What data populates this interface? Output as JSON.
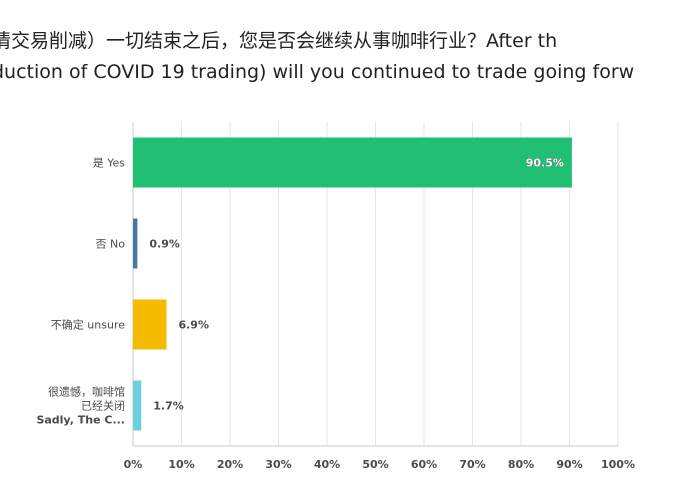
{
  "question": {
    "line1": "情交易削减）一切结束之后，您是否会继续从事咖啡行业？After th",
    "line2": "duction of COVID 19 trading) will you continued to trade going forw"
  },
  "chart_data": {
    "type": "bar",
    "orientation": "horizontal",
    "categories": [
      [
        "是 Yes"
      ],
      [
        "否 No"
      ],
      [
        "不确定 unsure"
      ],
      [
        "很遗憾，咖啡馆",
        "已经关闭",
        "Sadly, The C..."
      ]
    ],
    "values": [
      90.5,
      0.9,
      6.9,
      1.7
    ],
    "value_labels": [
      "90.5%",
      "0.9%",
      "6.9%",
      "1.7%"
    ],
    "colors": [
      "#21bf73",
      "#4a73a8",
      "#f5bb00",
      "#6ccfd9"
    ],
    "xlim": [
      0,
      100
    ],
    "xticks": [
      "0%",
      "10%",
      "20%",
      "30%",
      "40%",
      "50%",
      "60%",
      "70%",
      "80%",
      "90%",
      "100%"
    ],
    "grid": true,
    "label_color": "#4a4a4a",
    "grid_color": "#e6e6e6"
  }
}
